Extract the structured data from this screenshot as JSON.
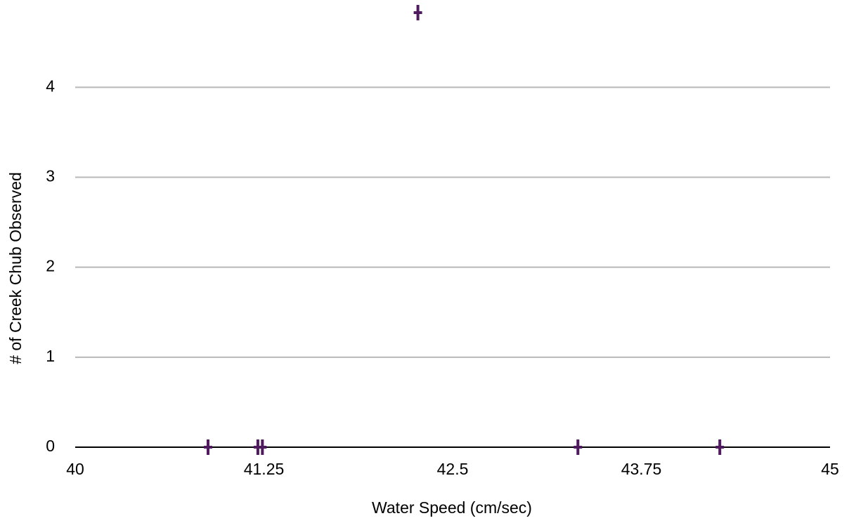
{
  "chart_data": {
    "type": "scatter",
    "x_label": "Water Speed (cm/sec)",
    "y_label": "# of Creek Chub Observed",
    "xlim": [
      40,
      45
    ],
    "xticks": [
      40,
      41.25,
      42.5,
      43.75,
      45
    ],
    "ylim": [
      0,
      4.97
    ],
    "yticks": [
      0,
      1,
      2,
      3,
      4
    ],
    "grid": true,
    "color": "#4f1a5e",
    "x": [
      40.88,
      41.21,
      41.24,
      43.33,
      44.27,
      42.27
    ],
    "values": [
      0,
      0,
      0,
      0,
      0,
      4.83
    ]
  }
}
